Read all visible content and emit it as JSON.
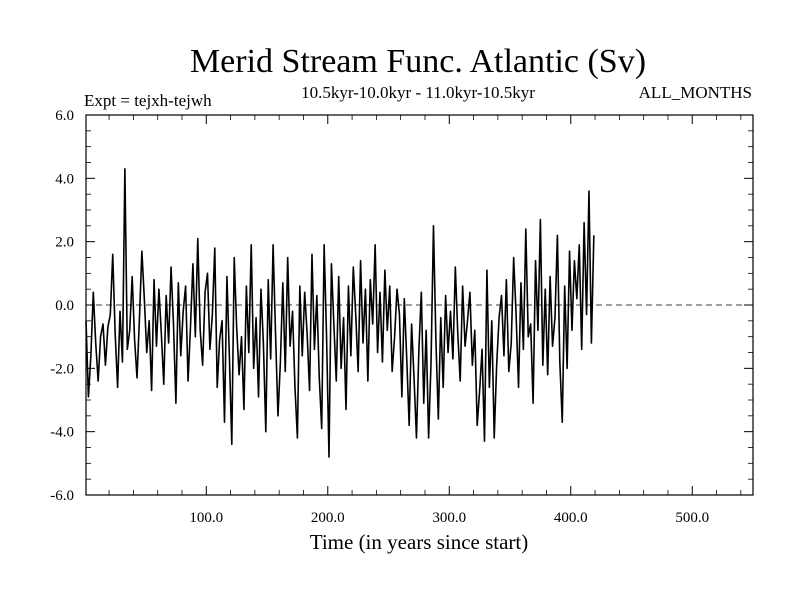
{
  "chart_data": {
    "type": "line",
    "title": "Merid Stream Func. Atlantic (Sv)",
    "subtitle": "10.5kyr-10.0kyr - 11.0kyr-10.5kyr",
    "expt_label": "Expt = tejxh-tejwh",
    "months_label": "ALL_MONTHS",
    "xlabel": "Time (in years since start)",
    "ylabel": "",
    "xlim": [
      1,
      550
    ],
    "ylim": [
      -6.0,
      6.0
    ],
    "x_ticks": [
      100,
      200,
      300,
      400,
      500
    ],
    "x_tick_labels": [
      "100.0",
      "200.0",
      "300.0",
      "400.0",
      "500.0"
    ],
    "y_ticks": [
      -6,
      -4,
      -2,
      0,
      2,
      4,
      6
    ],
    "y_tick_labels": [
      "-6.0",
      "-4.0",
      "-2.0",
      "0.0",
      "2.0",
      "4.0",
      "6.0"
    ],
    "zero_line": true,
    "line_color": "#000000",
    "series": [
      {
        "name": "Merid Stream Func. Atlantic",
        "x_start": 1,
        "x_step": 2,
        "values": [
          -0.5,
          -2.9,
          -1.6,
          0.4,
          -1.2,
          -2.4,
          -1.0,
          -0.6,
          -1.9,
          -0.7,
          -0.3,
          1.6,
          -0.9,
          -2.6,
          -0.2,
          -1.8,
          4.3,
          -1.4,
          -0.8,
          0.9,
          -1.1,
          -2.3,
          -0.4,
          1.7,
          0.2,
          -1.5,
          -0.5,
          -2.7,
          0.8,
          -1.3,
          0.5,
          -0.9,
          -2.5,
          0.3,
          -1.2,
          1.2,
          -0.6,
          -3.1,
          0.7,
          -1.6,
          -0.2,
          0.6,
          -2.4,
          -0.7,
          1.3,
          -1.0,
          2.1,
          -0.8,
          -1.9,
          0.4,
          1.0,
          -1.4,
          -0.3,
          1.8,
          -2.6,
          -1.1,
          -0.5,
          -3.7,
          0.9,
          -1.6,
          -4.4,
          1.5,
          -0.7,
          -2.2,
          -1.0,
          -3.3,
          0.6,
          -1.5,
          1.9,
          -2.0,
          -0.4,
          -2.9,
          0.5,
          -1.2,
          -4.0,
          0.8,
          -1.7,
          1.9,
          -0.9,
          -3.5,
          -1.8,
          0.7,
          -2.1,
          1.5,
          -1.3,
          -0.2,
          -2.6,
          -4.2,
          0.6,
          -1.6,
          0.4,
          -0.9,
          -2.7,
          1.6,
          -1.4,
          0.3,
          -2.3,
          -3.9,
          1.9,
          -1.0,
          -4.8,
          1.3,
          -0.6,
          -2.4,
          0.9,
          -2.0,
          -0.4,
          -3.3,
          0.6,
          -1.6,
          1.2,
          -0.3,
          -2.1,
          1.4,
          -1.2,
          0.5,
          -2.4,
          0.8,
          -0.6,
          1.9,
          -1.5,
          0.4,
          -1.8,
          1.1,
          -0.8,
          0.6,
          -2.1,
          -1.0,
          0.5,
          -0.3,
          -2.9,
          0.2,
          -1.7,
          -3.8,
          -0.6,
          -2.3,
          -4.2,
          -1.4,
          0.4,
          -3.1,
          -0.8,
          -4.2,
          -1.8,
          2.5,
          -1.1,
          -3.6,
          -0.4,
          -2.6,
          0.3,
          -1.5,
          -0.2,
          -1.7,
          1.2,
          -0.9,
          -2.4,
          0.6,
          -1.3,
          -0.5,
          0.4,
          -1.9,
          -0.8,
          -3.8,
          -2.7,
          -1.4,
          -4.3,
          1.1,
          -2.6,
          -0.5,
          -4.2,
          -1.9,
          -0.4,
          0.3,
          -1.6,
          0.8,
          -2.1,
          -1.2,
          1.5,
          -0.3,
          -2.6,
          0.7,
          -1.4,
          2.4,
          -1.0,
          -0.6,
          -3.1,
          1.4,
          -0.8,
          2.7,
          -1.9,
          0.5,
          -2.2,
          0.9,
          -1.3,
          -0.4,
          2.2,
          -1.8,
          -3.7,
          0.6,
          -2.0,
          1.7,
          -0.8,
          1.4,
          0.2,
          1.9,
          -1.4,
          2.6,
          -0.3,
          3.6,
          -1.2,
          2.2
        ]
      }
    ]
  }
}
